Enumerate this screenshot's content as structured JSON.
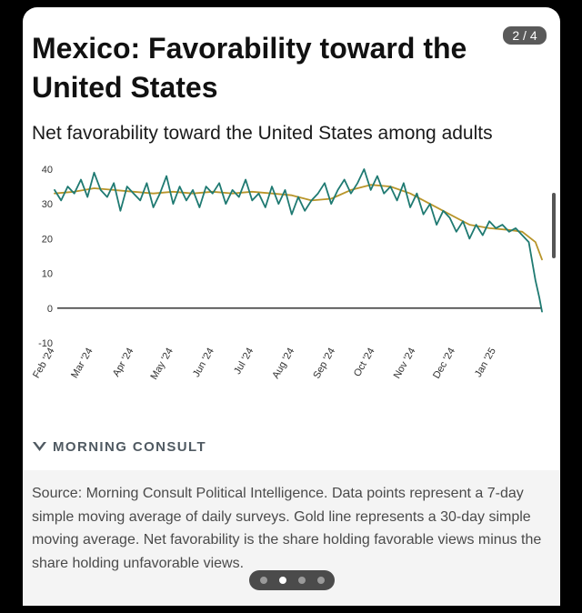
{
  "page_indicator": "2 / 4",
  "title": "Mexico: Favorability toward the United States",
  "subtitle": "Net favorability toward the United States among adults",
  "brand": "MORNING CONSULT",
  "source_note": "Source: Morning Consult Political Intelligence. Data points represent a 7-day simple moving average of daily surveys. Gold line represents a 30-day simple moving average. Net favorability is the share holding favorable views minus the share holding unfavorable views.",
  "carousel": {
    "count": 4,
    "active": 1
  },
  "colors": {
    "daily": "#1f7a72",
    "average": "#b8952a",
    "zero_line": "#222222",
    "brand_mark": "#505a62"
  },
  "chart_data": {
    "type": "line",
    "title": "Net favorability toward the United States among adults",
    "xlabel": "",
    "ylabel": "",
    "ylim": [
      -10,
      40
    ],
    "yticks": [
      40,
      30,
      20,
      10,
      0,
      -10
    ],
    "xticks": [
      "Feb '24",
      "Mar '24",
      "Apr '24",
      "May '24",
      "Jun '24",
      "Jul '24",
      "Aug '24",
      "Sep '24",
      "Oct '24",
      "Nov '24",
      "Dec '24",
      "Jan '25"
    ],
    "grid": false,
    "x_range": [
      "2024-02-01",
      "2025-02-05"
    ],
    "series": [
      {
        "key": "daily",
        "x": [
          "2024-02-01",
          "2024-02-06",
          "2024-02-11",
          "2024-02-16",
          "2024-02-21",
          "2024-02-26",
          "2024-03-02",
          "2024-03-07",
          "2024-03-12",
          "2024-03-17",
          "2024-03-22",
          "2024-03-27",
          "2024-04-01",
          "2024-04-06",
          "2024-04-11",
          "2024-04-16",
          "2024-04-21",
          "2024-04-26",
          "2024-05-01",
          "2024-05-06",
          "2024-05-11",
          "2024-05-16",
          "2024-05-21",
          "2024-05-26",
          "2024-05-31",
          "2024-06-05",
          "2024-06-10",
          "2024-06-15",
          "2024-06-20",
          "2024-06-25",
          "2024-06-30",
          "2024-07-05",
          "2024-07-10",
          "2024-07-15",
          "2024-07-20",
          "2024-07-25",
          "2024-07-30",
          "2024-08-04",
          "2024-08-09",
          "2024-08-14",
          "2024-08-19",
          "2024-08-24",
          "2024-08-29",
          "2024-09-03",
          "2024-09-08",
          "2024-09-13",
          "2024-09-18",
          "2024-09-23",
          "2024-09-28",
          "2024-10-03",
          "2024-10-08",
          "2024-10-13",
          "2024-10-18",
          "2024-10-23",
          "2024-10-28",
          "2024-11-02",
          "2024-11-07",
          "2024-11-12",
          "2024-11-17",
          "2024-11-22",
          "2024-11-27",
          "2024-12-02",
          "2024-12-07",
          "2024-12-12",
          "2024-12-17",
          "2024-12-22",
          "2024-12-27",
          "2025-01-01",
          "2025-01-06",
          "2025-01-11",
          "2025-01-16",
          "2025-01-21",
          "2025-01-26",
          "2025-01-31",
          "2025-02-03",
          "2025-02-05"
        ],
        "values": [
          34,
          31,
          35,
          33,
          37,
          32,
          39,
          34,
          32,
          36,
          28,
          35,
          33,
          31,
          36,
          29,
          33,
          38,
          30,
          35,
          31,
          34,
          29,
          35,
          33,
          36,
          30,
          34,
          32,
          37,
          31,
          33,
          29,
          35,
          30,
          34,
          27,
          32,
          28,
          31,
          33,
          36,
          30,
          34,
          37,
          33,
          36,
          40,
          34,
          38,
          33,
          35,
          31,
          36,
          29,
          33,
          27,
          30,
          24,
          28,
          26,
          22,
          25,
          20,
          24,
          21,
          25,
          23,
          24,
          22,
          23,
          21,
          19,
          8,
          3,
          -1
        ]
      },
      {
        "key": "average",
        "x": [
          "2024-02-01",
          "2024-02-16",
          "2024-03-02",
          "2024-03-17",
          "2024-04-01",
          "2024-04-16",
          "2024-05-01",
          "2024-05-16",
          "2024-05-31",
          "2024-06-15",
          "2024-06-30",
          "2024-07-15",
          "2024-07-30",
          "2024-08-14",
          "2024-08-29",
          "2024-09-13",
          "2024-09-28",
          "2024-10-13",
          "2024-10-28",
          "2024-11-12",
          "2024-11-27",
          "2024-12-12",
          "2024-12-27",
          "2025-01-11",
          "2025-01-21",
          "2025-01-31",
          "2025-02-05"
        ],
        "values": [
          33,
          33.5,
          34.5,
          34,
          33.5,
          33,
          33.5,
          33,
          33.5,
          33,
          33.5,
          33,
          32.5,
          31,
          31.5,
          34,
          35.5,
          35,
          33,
          30,
          27,
          24,
          23,
          22.5,
          22,
          19,
          14
        ]
      }
    ]
  }
}
